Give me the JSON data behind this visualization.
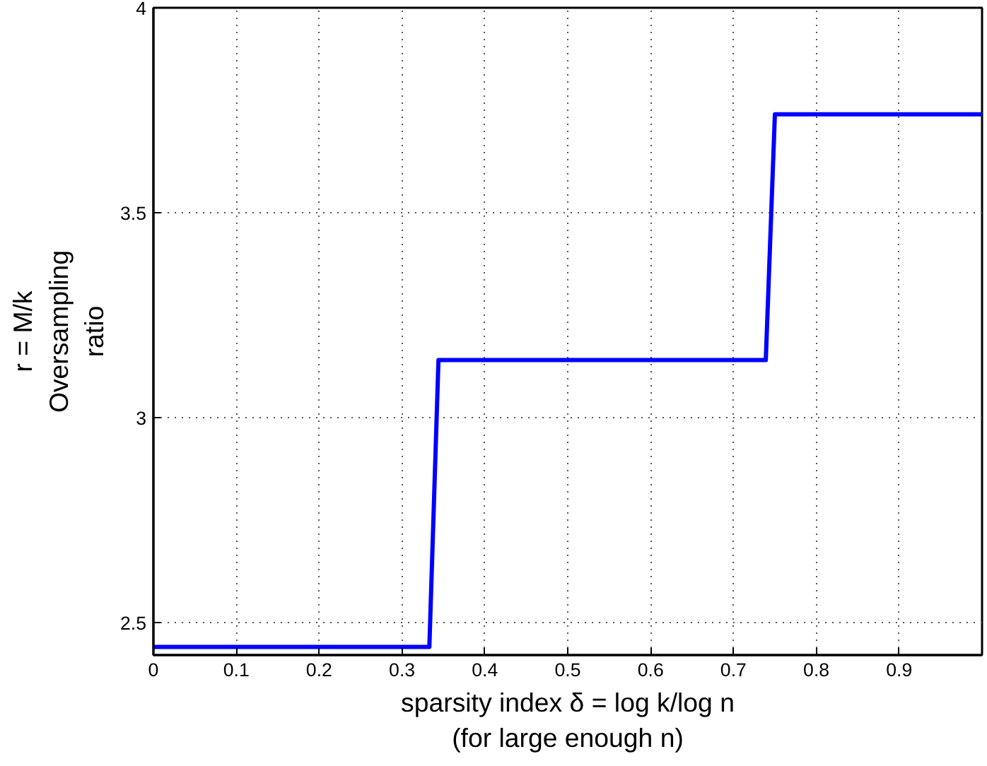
{
  "chart_data": {
    "type": "line",
    "xlabel": "sparsity index δ = log k/log n\n(for large enough n)",
    "ylabel": "r = M/k\nOversampling\nratio",
    "x": [
      0,
      0.333,
      0.344,
      0.739,
      0.75,
      1
    ],
    "series": [
      {
        "color": "#0000ff",
        "values": [
          2.44,
          2.44,
          3.14,
          3.14,
          3.74,
          3.74
        ]
      }
    ],
    "xlim": [
      0,
      1
    ],
    "xticks": [
      0,
      0.1,
      0.2,
      0.3,
      0.4,
      0.5,
      0.6,
      0.7,
      0.8,
      0.9
    ],
    "ylim": [
      2.42,
      4
    ],
    "yticks": [
      2.5,
      3,
      3.5,
      4
    ],
    "grid": true,
    "line_style": "solid"
  }
}
